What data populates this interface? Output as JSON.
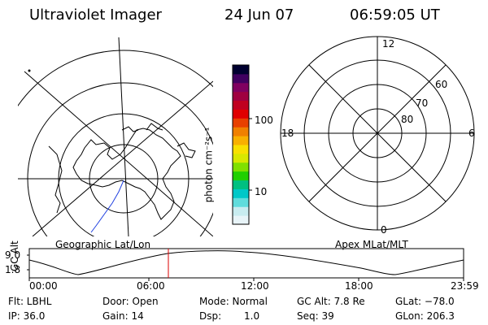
{
  "header": {
    "instrument": "Ultraviolet Imager",
    "date": "24 Jun 07",
    "time": "06:59:05 UT"
  },
  "left_map": {
    "caption": "Geographic Lat/Lon"
  },
  "right_map": {
    "caption": "Apex MLat/MLT",
    "mlt_labels": [
      "12",
      "18",
      "6",
      "0"
    ],
    "lat_labels": [
      "60",
      "70",
      "80"
    ]
  },
  "colorbar": {
    "unit_label": "photon cm⁻²s⁻¹",
    "ticks": [
      "100",
      "10"
    ],
    "colors": [
      "#e8f4f8",
      "#c8ecf0",
      "#60dcdc",
      "#00c8c8",
      "#00c080",
      "#20d000",
      "#80e000",
      "#d8e800",
      "#f8e000",
      "#f8b000",
      "#f08000",
      "#e84000",
      "#e00000",
      "#c00020",
      "#a00040",
      "#800060",
      "#400060",
      "#000030"
    ]
  },
  "altitude_plot": {
    "ylabel": "GC Alt",
    "yticks": [
      "9.0",
      "1.8"
    ],
    "xticks": [
      "00:00",
      "06:00",
      "12:00",
      "18:00",
      "23:59"
    ],
    "marker_color": "#dd0000"
  },
  "footer": {
    "filter": "Flt: LBHL",
    "ip": "IP: 36.0",
    "door": "Door: Open",
    "gain": "Gain: 14",
    "mode": "Mode: Normal",
    "dsp_label": "Dsp:",
    "dsp_value": "1.0",
    "gc_alt": "GC Alt: 7.8 Re",
    "seq": "Seq: 39",
    "glat": "GLat: −78.0",
    "glon": "GLon: 206.3"
  }
}
